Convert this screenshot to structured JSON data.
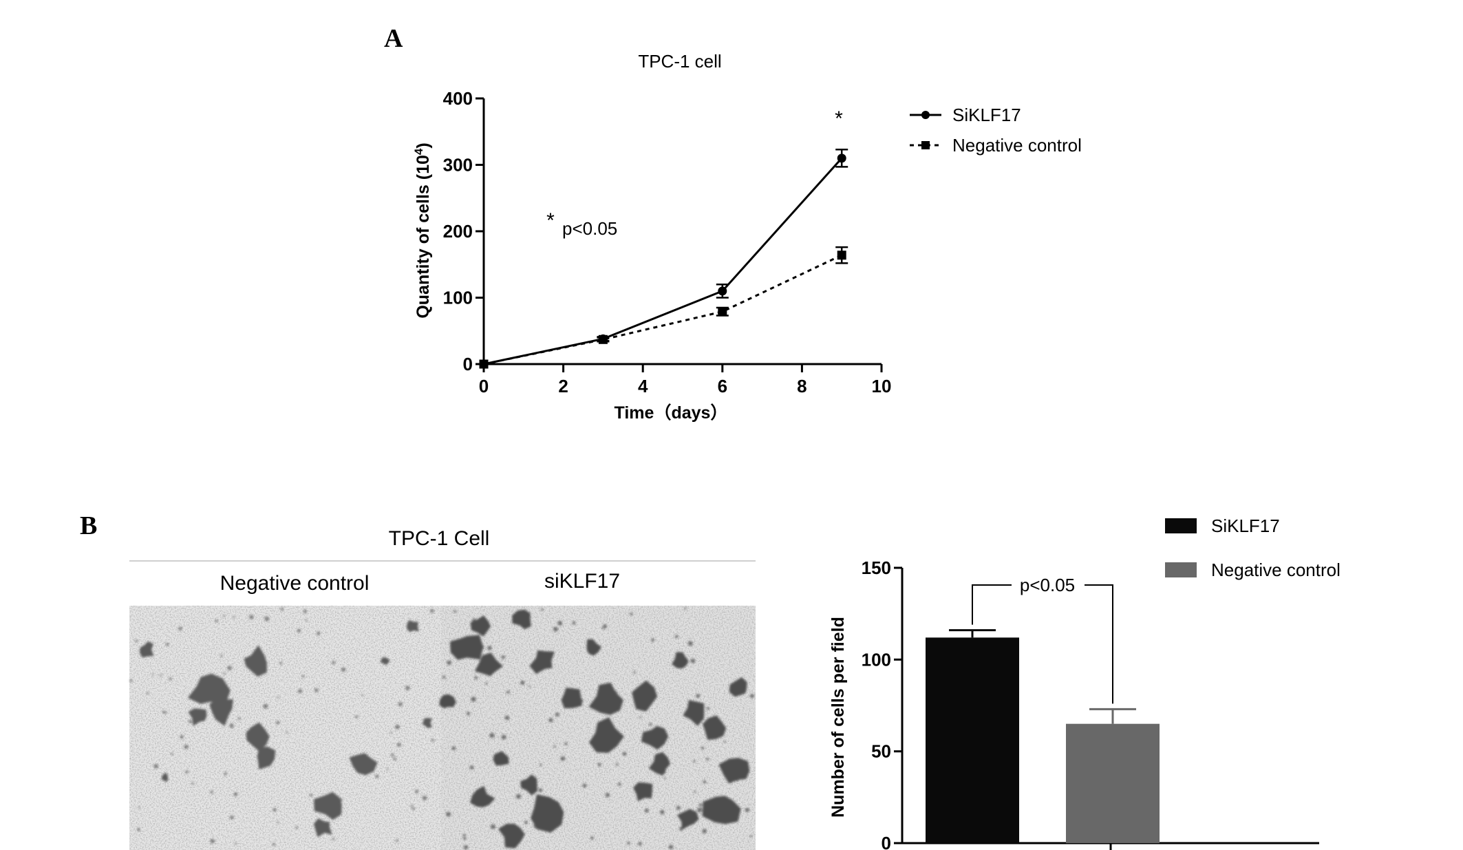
{
  "panels": {
    "a_letter": "A",
    "b_letter": "B"
  },
  "micrographs": {
    "title": "TPC-1 Cell",
    "left_label": "Negative control",
    "right_label": "siKLF17"
  },
  "chart_data": [
    {
      "type": "line",
      "title": "TPC-1 cell",
      "xlabel": "Time（days）",
      "ylabel": "Quantity of cells (10",
      "ylabel_sup": "4",
      "ylabel_close": ")",
      "xlim": [
        0,
        10
      ],
      "ylim": [
        0,
        400
      ],
      "xticks": [
        "0",
        "2",
        "4",
        "6",
        "8",
        "10"
      ],
      "yticks": [
        "0",
        "100",
        "200",
        "300",
        "400"
      ],
      "series": [
        {
          "name": "SiKLF17",
          "x": [
            0,
            3,
            6,
            9
          ],
          "y": [
            0,
            38,
            110,
            310
          ],
          "err": [
            0,
            3,
            10,
            13
          ],
          "marker": "circle",
          "dash": "solid"
        },
        {
          "name": "Negative control",
          "x": [
            0,
            3,
            6,
            9
          ],
          "y": [
            0,
            37,
            79,
            164
          ],
          "err": [
            0,
            3,
            6,
            12
          ],
          "marker": "square",
          "dash": "dotted"
        }
      ],
      "annotations": {
        "star_top": "*",
        "star_legend": "*",
        "pvalue": "p<0.05"
      },
      "legend_position": "right",
      "grid": false,
      "colors": {
        "line": "#000000"
      }
    },
    {
      "type": "bar",
      "categories": [
        "SiKLF17",
        "Negative control"
      ],
      "values": [
        112,
        65
      ],
      "err": [
        4,
        8
      ],
      "ylabel": "Number of cells per field",
      "ylim": [
        0,
        150
      ],
      "yticks": [
        "0",
        "50",
        "100",
        "150"
      ],
      "annotation": "p<0.05",
      "colors": [
        "#0a0a0a",
        "#686868"
      ],
      "legend_position": "top-right",
      "grid": false
    }
  ]
}
